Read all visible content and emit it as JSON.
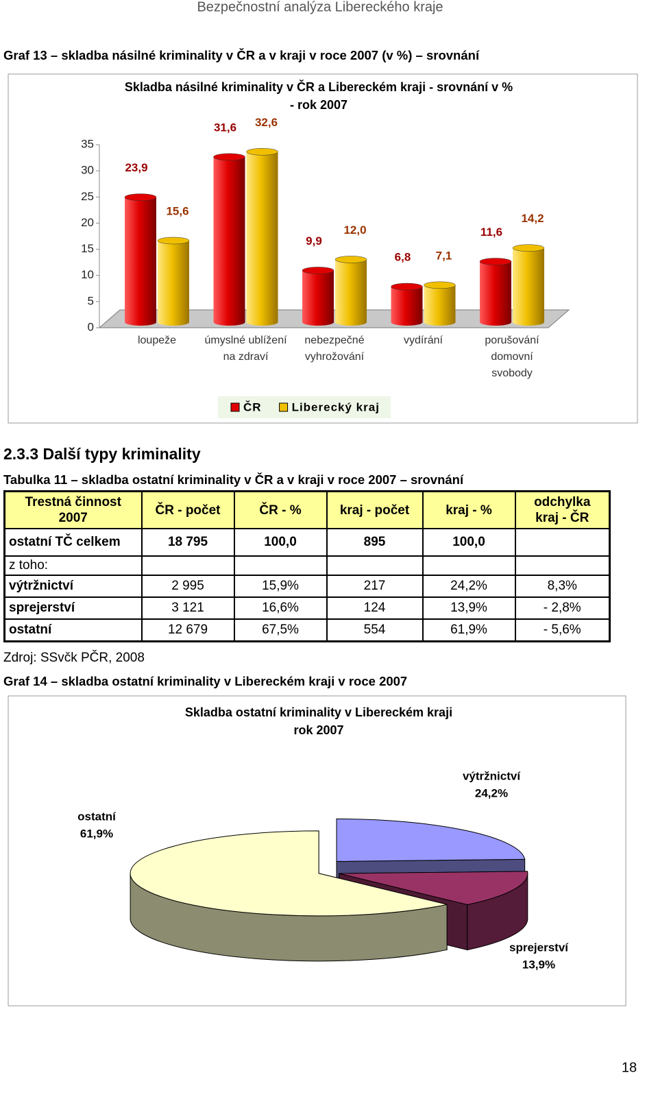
{
  "header": {
    "title": "Bezpečnostní analýza Libereckého kraje"
  },
  "figure13": {
    "caption": "Graf 13 – skladba násilné kriminality v ČR a v kraji v roce 2007 (v %) – srovnání"
  },
  "chart_data": [
    {
      "type": "bar",
      "title": [
        "Skladba násilné kriminality v ČR a Libereckém kraji - srovnání v %",
        "- rok 2007"
      ],
      "categories": [
        [
          "loupeže"
        ],
        [
          "úmyslné ublížení",
          "na zdraví"
        ],
        [
          "nebezpečné",
          "vyhrožování"
        ],
        [
          "vydírání"
        ],
        [
          "porušování",
          "domovní",
          "svobody"
        ]
      ],
      "series": [
        {
          "name": "ČR",
          "color": "#e00000",
          "label_color": "#990000",
          "values": [
            23.9,
            31.6,
            9.9,
            6.8,
            11.6
          ],
          "value_labels": [
            "23,9",
            "31,6",
            "9,9",
            "6,8",
            "11,6"
          ]
        },
        {
          "name": "Liberecký kraj",
          "color": "#f0c000",
          "label_color": "#993300",
          "values": [
            15.6,
            32.6,
            12.0,
            7.1,
            14.2
          ],
          "value_labels": [
            "15,6",
            "32,6",
            "12,0",
            "7,1",
            "14,2"
          ]
        }
      ],
      "ylim": [
        0,
        35
      ],
      "yticks": [
        0,
        5,
        10,
        15,
        20,
        25,
        30,
        35
      ],
      "legend": "bottom"
    },
    {
      "type": "pie",
      "title": [
        "Skladba ostatní kriminality v Libereckém kraji",
        "rok 2007"
      ],
      "categories": [
        "výtržnictví",
        "sprejerství",
        "ostatní"
      ],
      "values": [
        24.2,
        13.9,
        61.9
      ],
      "value_labels": [
        "24,2%",
        "13,9%",
        "61,9%"
      ],
      "colors": [
        "#9999ff",
        "#993366",
        "#ffffcc"
      ]
    }
  ],
  "section": {
    "heading": "2.3.3 Další typy kriminality"
  },
  "table": {
    "caption": "Tabulka 11 – skladba ostatní kriminality v ČR a v kraji v roce 2007 – srovnání",
    "header": [
      [
        "Trestná činnost",
        "2007"
      ],
      "ČR - počet",
      "ČR - %",
      "kraj - počet",
      "kraj - %",
      [
        "odchylka",
        "kraj - ČR"
      ]
    ],
    "rows": [
      [
        "ostatní TČ celkem",
        "18 795",
        "100,0",
        "895",
        "100,0",
        null
      ],
      [
        "z toho:",
        null,
        null,
        null,
        null,
        null
      ],
      [
        "výtržnictví",
        "2 995",
        "15,9%",
        "217",
        "24,2%",
        "8,3%"
      ],
      [
        "sprejerství",
        "3 121",
        "16,6%",
        "124",
        "13,9%",
        "- 2,8%"
      ],
      [
        "ostatní",
        "12 679",
        "67,5%",
        "554",
        "61,9%",
        "- 5,6%"
      ]
    ],
    "source": "Zdroj: SSvčk PČR, 2008"
  },
  "figure14": {
    "caption": "Graf 14 – skladba ostatní kriminality v Libereckém kraji v roce 2007"
  },
  "page_number": "18"
}
